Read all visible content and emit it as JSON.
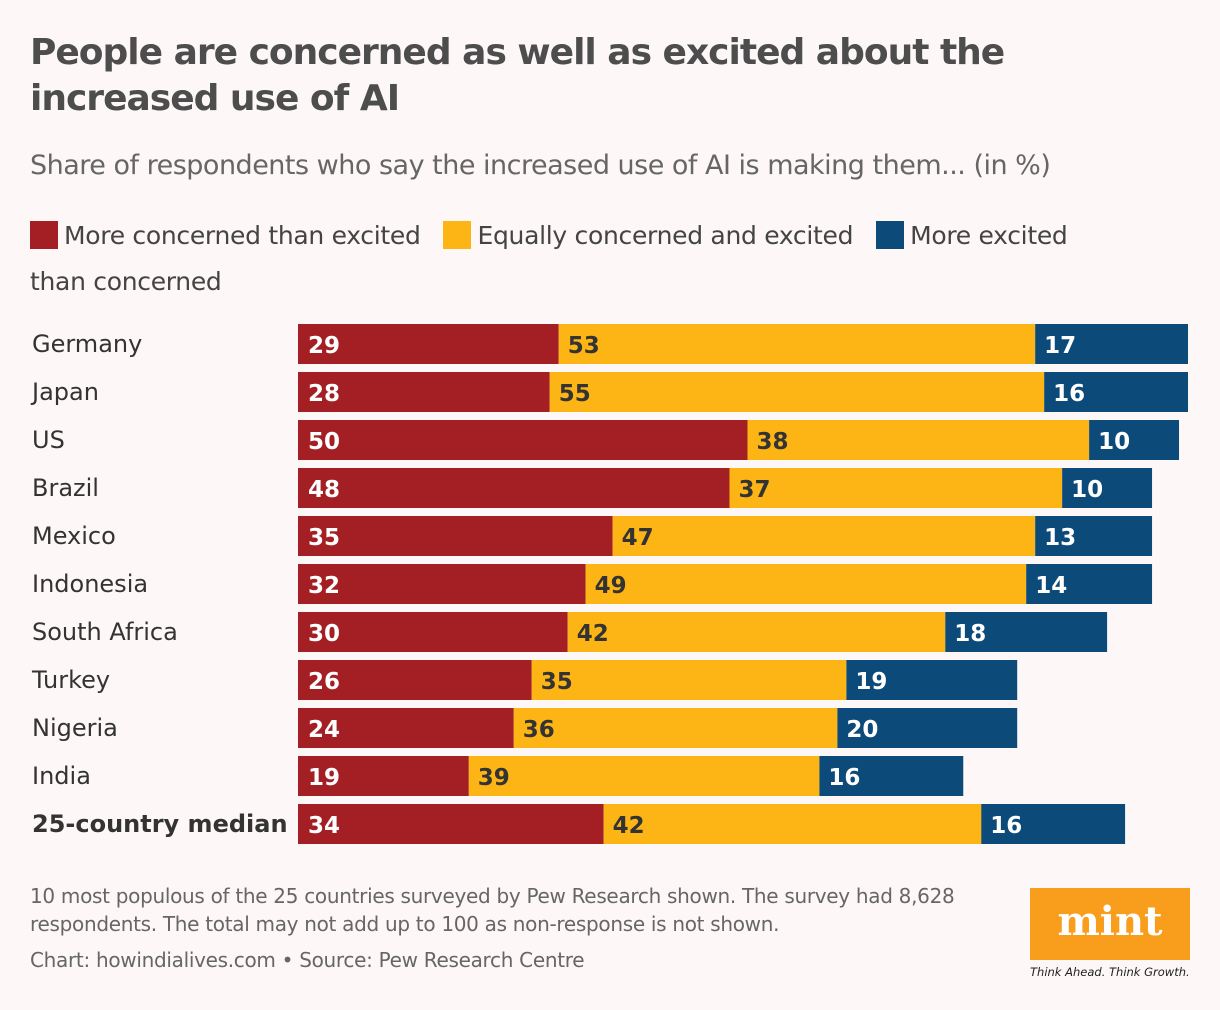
{
  "chart_data": {
    "type": "bar",
    "orientation": "horizontal",
    "stacked": true,
    "title": "People are concerned as well as excited about the increased use of AI",
    "subtitle": "Share of respondents who say the increased use of AI is making them... (in %)",
    "categories": [
      "Germany",
      "Japan",
      "US",
      "Brazil",
      "Mexico",
      "Indonesia",
      "South Africa",
      "Turkey",
      "Nigeria",
      "India",
      "25-country median"
    ],
    "series": [
      {
        "name": "More concerned than excited",
        "color": "#a31f24",
        "label_color": "#ffffff",
        "values": [
          29,
          28,
          50,
          48,
          35,
          32,
          30,
          26,
          24,
          19,
          34
        ]
      },
      {
        "name": "Equally concerned and excited",
        "color": "#fdb515",
        "label_color": "#333333",
        "values": [
          53,
          55,
          38,
          37,
          47,
          49,
          42,
          35,
          36,
          39,
          42
        ]
      },
      {
        "name": "More excited than concerned",
        "color": "#0c4a7a",
        "label_color": "#ffffff",
        "values": [
          17,
          16,
          10,
          10,
          13,
          14,
          18,
          19,
          20,
          16,
          16
        ]
      }
    ],
    "xlim": [
      0,
      100
    ],
    "grid": false,
    "legend_position": "top",
    "bold_category": "25-country median"
  },
  "footer": {
    "note": "10 most populous of the 25 countries surveyed by Pew Research shown. The survey had 8,628 respondents. The total may not add up to 100 as non-response is not shown.",
    "source": "Chart: howindialives.com • Source: Pew Research Centre"
  },
  "logo": {
    "text": "mint",
    "tagline": "Think Ahead. Think Growth."
  }
}
